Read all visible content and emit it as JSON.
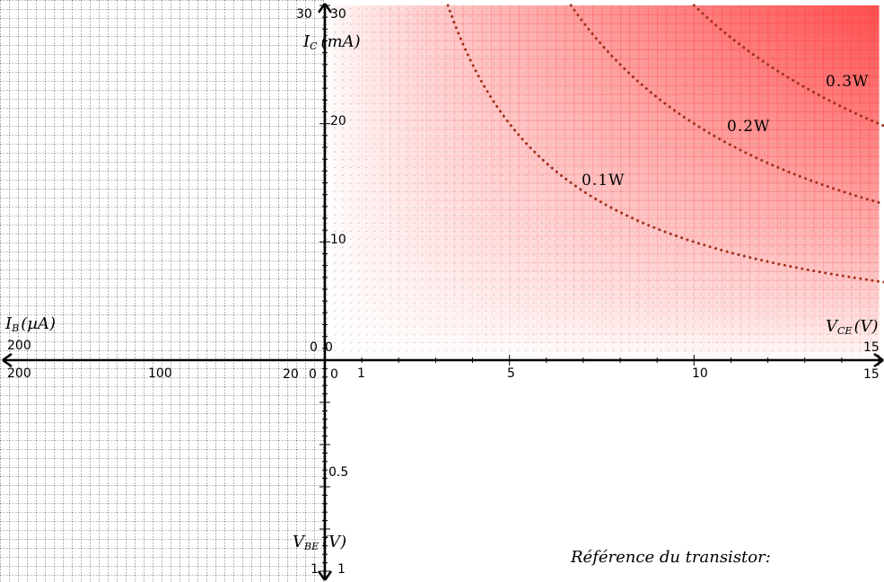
{
  "colors": {
    "power_fill": "#ff4444",
    "isocurve": "#a0301c",
    "grid_dotted": "#000000",
    "axis": "#000000"
  },
  "reference_label": "Référence du transistor:",
  "chart_data": [
    {
      "type": "line",
      "name": "output-characteristic",
      "xlabel": "VCE(V)",
      "ylabel": "IC (mA)",
      "xlim": [
        0,
        15
      ],
      "ylim": [
        0,
        30
      ],
      "x_ticks": [
        "1",
        "5",
        "10",
        "15"
      ],
      "x_tick_values": [
        1,
        5,
        10,
        15
      ],
      "y_ticks": [
        "10",
        "20",
        "30"
      ],
      "y_tick_values": [
        10,
        20,
        30
      ],
      "origin_label": "0",
      "x_end_label": "15",
      "series": [
        {
          "name": "0.1W",
          "power": 0.1
        },
        {
          "name": "0.2W",
          "power": 0.2
        },
        {
          "name": "0.3W",
          "power": 0.3
        }
      ],
      "shading": "gradient by power VCE·IC"
    },
    {
      "type": "line",
      "name": "input-characteristic",
      "xlabel": "IB(µA)",
      "xlim": [
        200,
        0
      ],
      "x_ticks": [
        "200",
        "100",
        "20",
        "0"
      ],
      "x_tick_values": [
        200,
        100,
        20,
        0
      ],
      "top_left_label": "200",
      "top_right_label": "0",
      "series": []
    },
    {
      "type": "line",
      "name": "transfer-characteristic",
      "ylabel": "VBE(V)",
      "ylim": [
        0,
        1
      ],
      "y_ticks": [
        "0",
        "0.5",
        "1"
      ],
      "y_tick_values": [
        0,
        0.5,
        1
      ],
      "bottom_label": "1",
      "series": []
    }
  ],
  "labels": {
    "ic_main": "I",
    "ic_sub": "C",
    "ic_unit": "(mA)",
    "vce_main": "V",
    "vce_sub": "CE",
    "vce_unit": "(V)",
    "ib_main": "I",
    "ib_sub": "B",
    "ib_unit": "(µA)",
    "vbe_main": "V",
    "vbe_sub": "BE",
    "vbe_unit": "(V)"
  }
}
